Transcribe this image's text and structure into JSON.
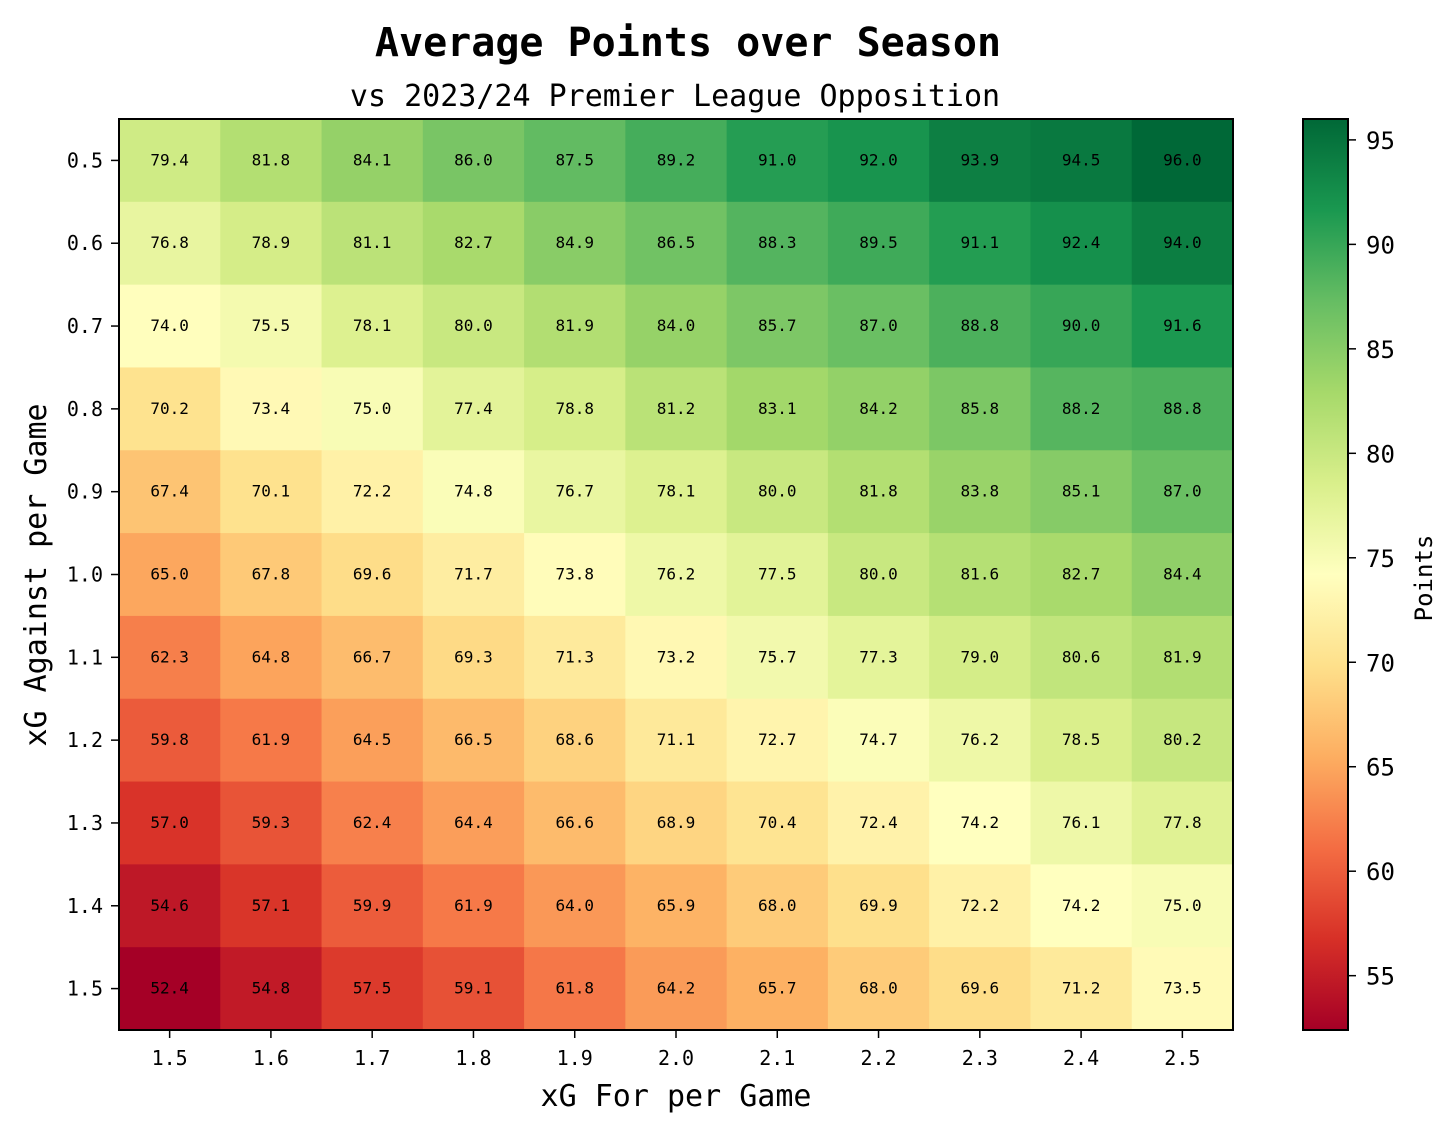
{
  "chart_data": {
    "type": "heatmap",
    "title": "Average Points over Season",
    "subtitle": "vs 2023/24 Premier League Opposition",
    "xlabel": "xG For per Game",
    "ylabel": "xG Against per Game",
    "x_categories": [
      "1.5",
      "1.6",
      "1.7",
      "1.8",
      "1.9",
      "2.0",
      "2.1",
      "2.2",
      "2.3",
      "2.4",
      "2.5"
    ],
    "y_categories": [
      "0.5",
      "0.6",
      "0.7",
      "0.8",
      "0.9",
      "1.0",
      "1.1",
      "1.2",
      "1.3",
      "1.4",
      "1.5"
    ],
    "values": [
      [
        79.4,
        81.8,
        84.1,
        86.0,
        87.5,
        89.2,
        91.0,
        92.0,
        93.9,
        94.5,
        96.0
      ],
      [
        76.8,
        78.9,
        81.1,
        82.7,
        84.9,
        86.5,
        88.3,
        89.5,
        91.1,
        92.4,
        94.0
      ],
      [
        74.0,
        75.5,
        78.1,
        80.0,
        81.9,
        84.0,
        85.7,
        87.0,
        88.8,
        90.0,
        91.6
      ],
      [
        70.2,
        73.4,
        75.0,
        77.4,
        78.8,
        81.2,
        83.1,
        84.2,
        85.8,
        88.2,
        88.8
      ],
      [
        67.4,
        70.1,
        72.2,
        74.8,
        76.7,
        78.1,
        80.0,
        81.8,
        83.8,
        85.1,
        87.0
      ],
      [
        65.0,
        67.8,
        69.6,
        71.7,
        73.8,
        76.2,
        77.5,
        80.0,
        81.6,
        82.7,
        84.4
      ],
      [
        62.3,
        64.8,
        66.7,
        69.3,
        71.3,
        73.2,
        75.7,
        77.3,
        79.0,
        80.6,
        81.9
      ],
      [
        59.8,
        61.9,
        64.5,
        66.5,
        68.6,
        71.1,
        72.7,
        74.7,
        76.2,
        78.5,
        80.2
      ],
      [
        57.0,
        59.3,
        62.4,
        64.4,
        66.6,
        68.9,
        70.4,
        72.4,
        74.2,
        76.1,
        77.8
      ],
      [
        54.6,
        57.1,
        59.9,
        61.9,
        64.0,
        65.9,
        68.0,
        69.9,
        72.2,
        74.2,
        75.0
      ],
      [
        52.4,
        54.8,
        57.5,
        59.1,
        61.8,
        64.2,
        65.7,
        68.0,
        69.6,
        71.2,
        73.5
      ]
    ],
    "colorbar": {
      "label": "Points",
      "range": [
        52.4,
        96.0
      ],
      "ticks": [
        "55",
        "60",
        "65",
        "70",
        "75",
        "80",
        "85",
        "90",
        "95"
      ],
      "colormap": "RdYlGn",
      "colors": [
        "#a50026",
        "#d73027",
        "#f46d43",
        "#fdae61",
        "#fee08b",
        "#ffffbf",
        "#d9ef8b",
        "#a6d96a",
        "#66bd63",
        "#1a9850",
        "#006837"
      ]
    }
  }
}
